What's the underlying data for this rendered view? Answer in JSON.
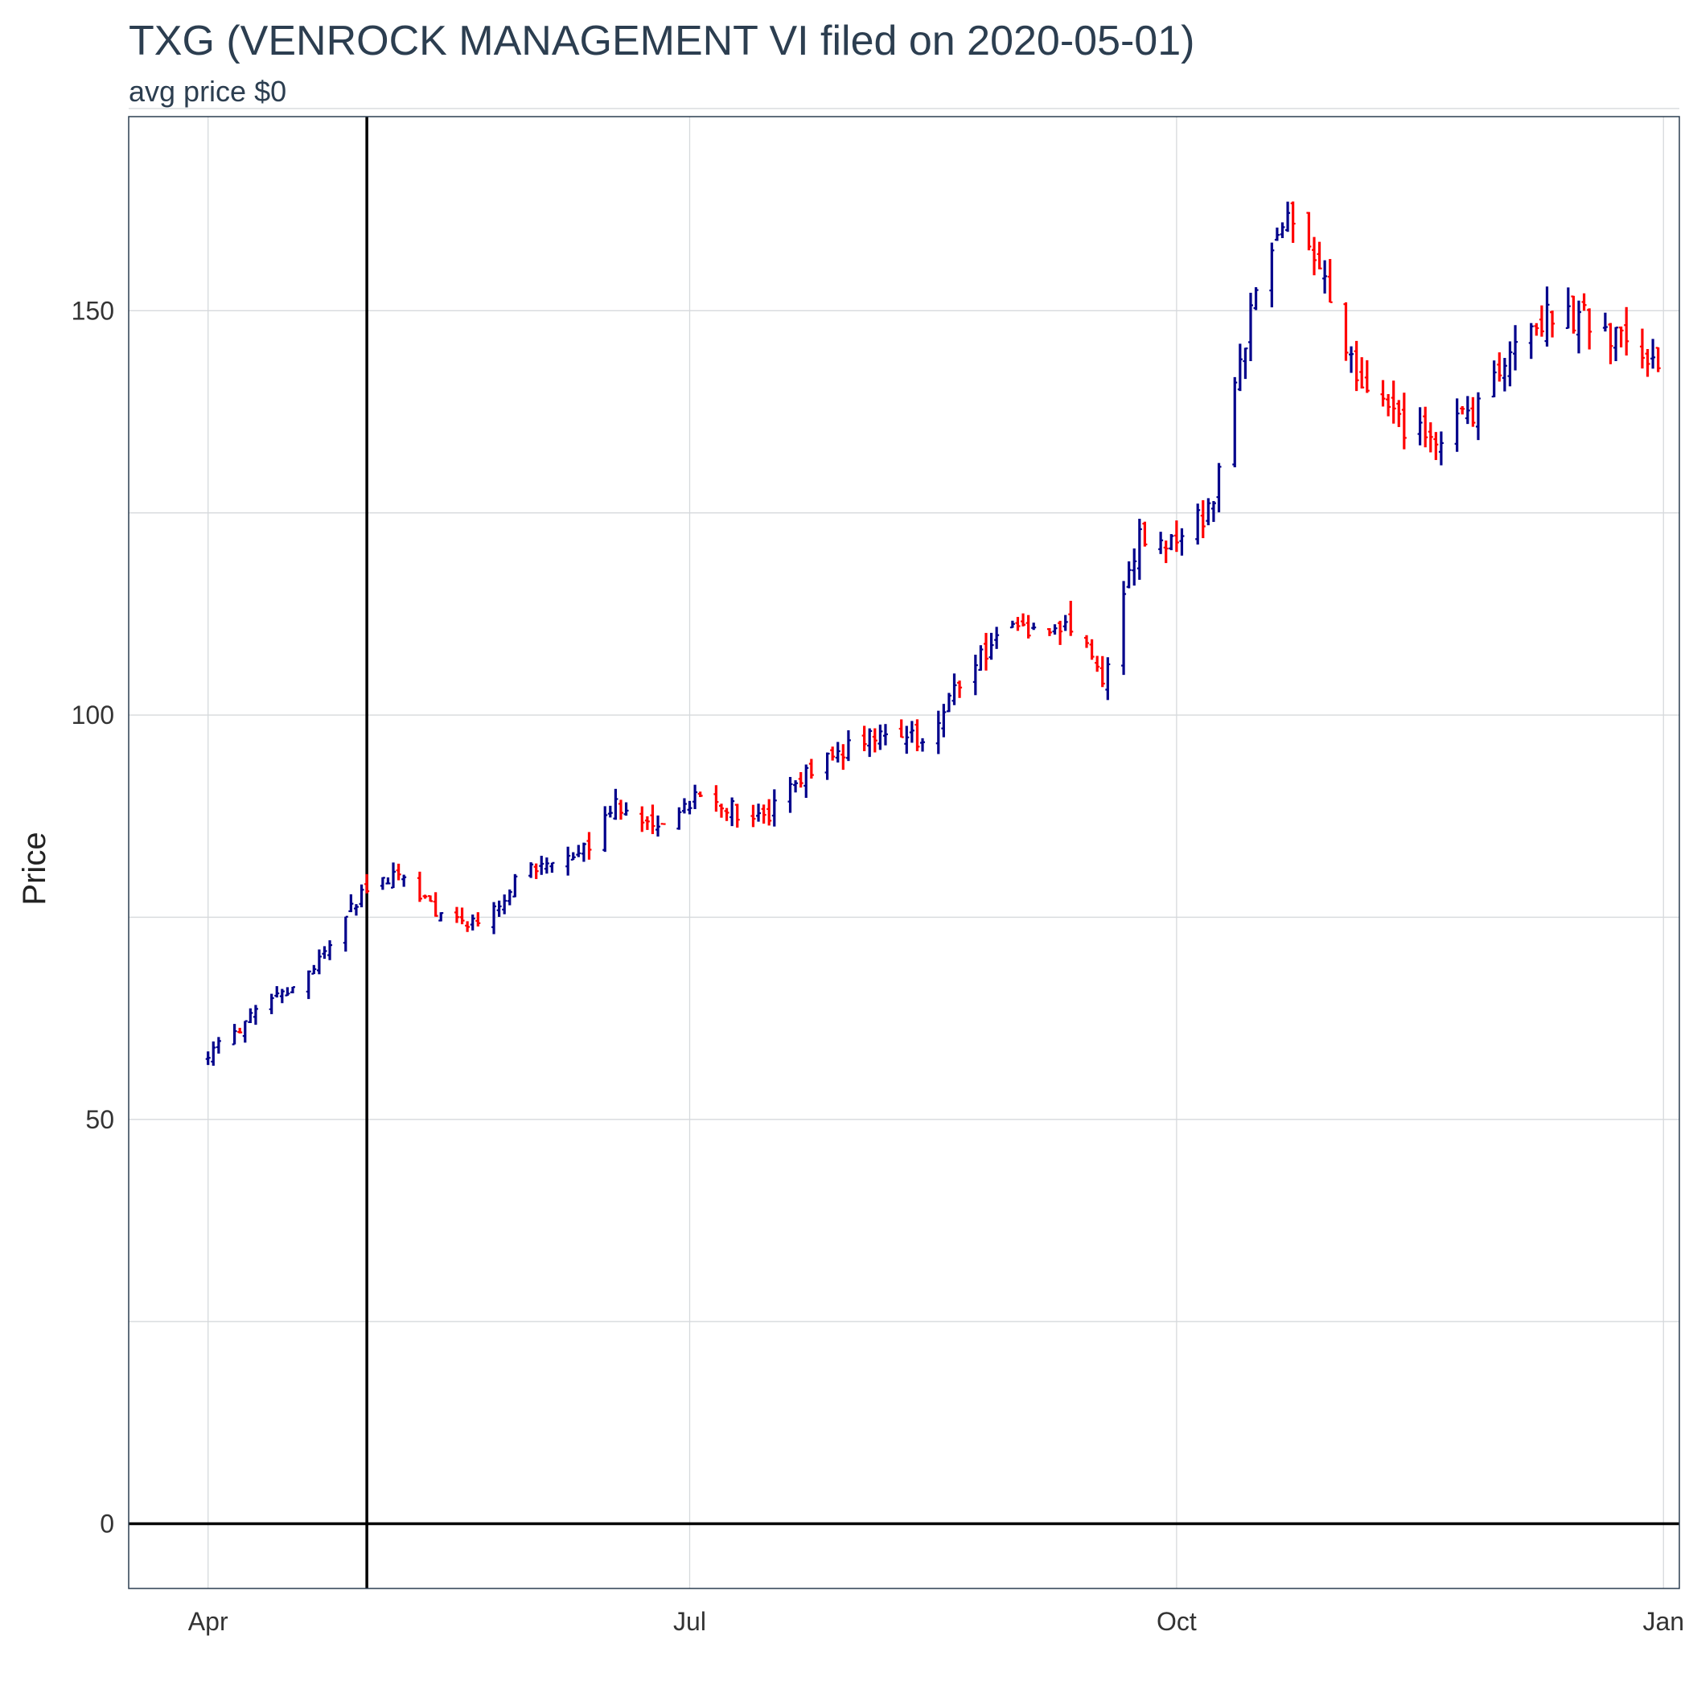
{
  "chart_data": {
    "type": "ohlc",
    "title": "TXG (VENROCK MANAGEMENT VI filed on 2020-05-01)",
    "subtitle": "avg price $0",
    "xlabel": "",
    "ylabel": "Price",
    "x_ticks": [
      {
        "label": "Apr",
        "date": "2020-04-01"
      },
      {
        "label": "Jul",
        "date": "2020-07-01"
      },
      {
        "label": "Oct",
        "date": "2020-10-01"
      },
      {
        "label": "Jan",
        "date": "2021-01-01"
      }
    ],
    "y_ticks": [
      0,
      50,
      100,
      150
    ],
    "ylim": [
      -8,
      174
    ],
    "xlim": [
      "2020-03-17",
      "2021-01-04"
    ],
    "grid": true,
    "legend": "none",
    "up_color": "#00008b",
    "down_color": "#ff0000",
    "reference_lines": {
      "vertical_date": "2020-05-01",
      "horizontal_value": 0
    },
    "checkpoints": [
      [
        "2020-04-01",
        58
      ],
      [
        "2020-04-10",
        63
      ],
      [
        "2020-04-20",
        68
      ],
      [
        "2020-04-27",
        75
      ],
      [
        "2020-05-01",
        79
      ],
      [
        "2020-05-08",
        80
      ],
      [
        "2020-05-14",
        76
      ],
      [
        "2020-05-21",
        74
      ],
      [
        "2020-06-01",
        81
      ],
      [
        "2020-06-10",
        82
      ],
      [
        "2020-06-16",
        89
      ],
      [
        "2020-06-25",
        86
      ],
      [
        "2020-07-02",
        90
      ],
      [
        "2020-07-15",
        87
      ],
      [
        "2020-07-27",
        95
      ],
      [
        "2020-08-07",
        98
      ],
      [
        "2020-08-14",
        97
      ],
      [
        "2020-08-24",
        107
      ],
      [
        "2020-09-01",
        111
      ],
      [
        "2020-09-10",
        111
      ],
      [
        "2020-09-17",
        105
      ],
      [
        "2020-09-24",
        122
      ],
      [
        "2020-10-01",
        121
      ],
      [
        "2020-10-08",
        126
      ],
      [
        "2020-10-15",
        150
      ],
      [
        "2020-10-22",
        163
      ],
      [
        "2020-10-29",
        153
      ],
      [
        "2020-11-04",
        141
      ],
      [
        "2020-11-12",
        136
      ],
      [
        "2020-11-20",
        134
      ],
      [
        "2020-11-27",
        138
      ],
      [
        "2020-12-04",
        146
      ],
      [
        "2020-12-11",
        150
      ],
      [
        "2020-12-18",
        149
      ],
      [
        "2020-12-31",
        143
      ]
    ]
  }
}
